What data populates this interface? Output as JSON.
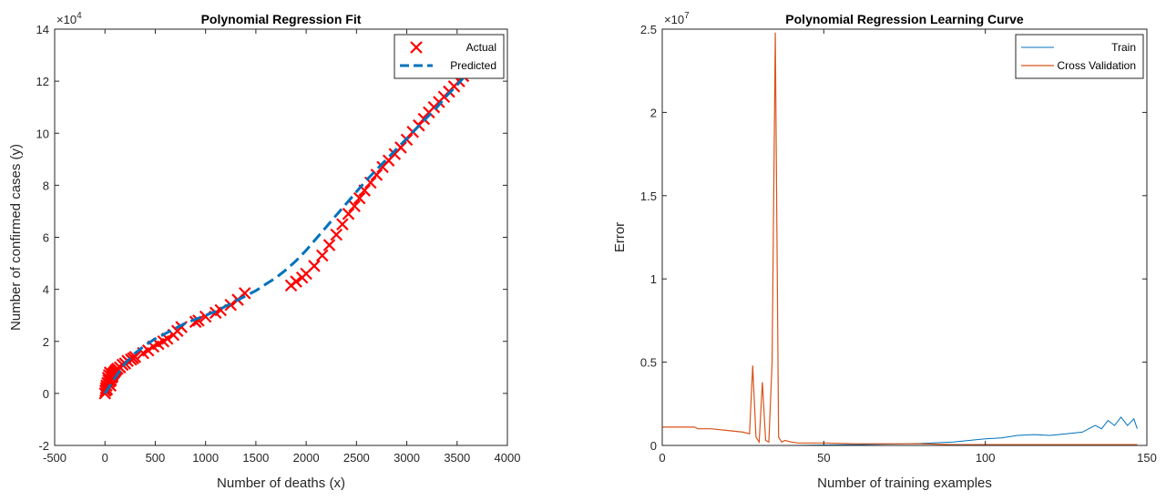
{
  "chart_data": [
    {
      "type": "scatter",
      "title": "Polynomial Regression Fit",
      "xlabel": "Number of deaths (x)",
      "ylabel": "Number of confirmed cases (y)",
      "xlim": [
        -500,
        4000
      ],
      "ylim": [
        -2,
        14
      ],
      "y_multiplier": "×10",
      "y_multiplier_exp": "4",
      "xticks": [
        "-500",
        "0",
        "500",
        "1000",
        "1500",
        "2000",
        "2500",
        "3000",
        "3500",
        "4000"
      ],
      "yticks": [
        "-2",
        "0",
        "2",
        "4",
        "6",
        "8",
        "10",
        "12",
        "14"
      ],
      "legend_position": "top-right",
      "series": [
        {
          "name": "Actual",
          "style": "red x markers",
          "color": "#ff0000",
          "x": [
            0,
            5,
            10,
            15,
            20,
            25,
            30,
            35,
            40,
            45,
            50,
            55,
            60,
            65,
            70,
            75,
            80,
            90,
            100,
            110,
            125,
            150,
            175,
            200,
            225,
            260,
            280,
            300,
            380,
            430,
            480,
            530,
            580,
            620,
            680,
            720,
            760,
            900,
            930,
            1000,
            1100,
            1150,
            1250,
            1320,
            1390,
            1850,
            1900,
            1960,
            2000,
            2080,
            2160,
            2230,
            2300,
            2360,
            2420,
            2480,
            2530,
            2580,
            2640,
            2700,
            2760,
            2820,
            2880,
            2940,
            3000,
            3060,
            3120,
            3170,
            3220,
            3270,
            3320,
            3370,
            3420,
            3470,
            3520,
            3560,
            3600,
            3640,
            3680,
            3720,
            3760,
            3800,
            3840,
            3880
          ],
          "y": [
            0.0,
            0.1,
            0.2,
            0.3,
            0.15,
            0.4,
            0.6,
            0.5,
            0.7,
            0.45,
            0.8,
            0.3,
            0.5,
            0.6,
            0.7,
            0.65,
            0.75,
            0.8,
            0.85,
            0.9,
            0.95,
            1.0,
            1.1,
            1.15,
            1.25,
            1.3,
            1.35,
            1.4,
            1.55,
            1.65,
            1.8,
            1.9,
            2.0,
            2.1,
            2.25,
            2.4,
            2.55,
            2.75,
            2.8,
            2.95,
            3.1,
            3.2,
            3.4,
            3.6,
            3.85,
            4.15,
            4.3,
            4.45,
            4.6,
            4.9,
            5.3,
            5.7,
            6.1,
            6.5,
            6.9,
            7.2,
            7.5,
            7.8,
            8.1,
            8.4,
            8.7,
            8.95,
            9.2,
            9.45,
            9.75,
            10.05,
            10.3,
            10.55,
            10.8,
            11.0,
            11.2,
            11.4,
            11.6,
            11.8,
            12.0,
            12.2,
            12.4,
            12.55,
            12.7,
            12.85,
            12.95,
            13.0,
            13.05,
            13.1
          ]
        },
        {
          "name": "Predicted",
          "style": "blue dashed line",
          "color": "#0072bd",
          "x": [
            0,
            100,
            200,
            300,
            400,
            500,
            600,
            700,
            800,
            900,
            1000,
            1100,
            1200,
            1300,
            1400,
            1500,
            1600,
            1700,
            1800,
            1900,
            2000,
            2100,
            2200,
            2300,
            2400,
            2500,
            2600,
            2700,
            2800,
            2900,
            3000,
            3100,
            3200,
            3300,
            3400,
            3500,
            3600,
            3700,
            3800,
            3900
          ],
          "y": [
            0.0,
            0.6,
            1.15,
            1.55,
            1.85,
            2.1,
            2.3,
            2.5,
            2.7,
            2.85,
            3.0,
            3.15,
            3.35,
            3.55,
            3.75,
            3.95,
            4.2,
            4.45,
            4.75,
            5.1,
            5.5,
            5.95,
            6.4,
            6.85,
            7.3,
            7.75,
            8.2,
            8.6,
            9.0,
            9.4,
            9.8,
            10.2,
            10.6,
            11.0,
            11.45,
            11.85,
            12.3,
            12.7,
            13.1,
            13.5
          ]
        }
      ]
    },
    {
      "type": "line",
      "title": "Polynomial Regression Learning Curve",
      "xlabel": "Number of training examples",
      "ylabel": "Error",
      "xlim": [
        0,
        150
      ],
      "ylim": [
        0,
        2.5
      ],
      "y_multiplier": "×10",
      "y_multiplier_exp": "7",
      "xticks": [
        "0",
        "50",
        "100",
        "150"
      ],
      "yticks": [
        "0",
        "0.5",
        "1",
        "1.5",
        "2",
        "2.5"
      ],
      "legend_position": "top-right",
      "series": [
        {
          "name": "Train",
          "color": "#0072bd",
          "x": [
            0,
            10,
            20,
            30,
            40,
            50,
            60,
            70,
            80,
            90,
            95,
            100,
            105,
            110,
            115,
            120,
            125,
            130,
            132,
            134,
            136,
            138,
            140,
            142,
            144,
            146,
            147
          ],
          "y": [
            0.0,
            0.0,
            0.0,
            0.0,
            0.0,
            0.003,
            0.005,
            0.008,
            0.012,
            0.02,
            0.03,
            0.04,
            0.045,
            0.06,
            0.065,
            0.06,
            0.07,
            0.08,
            0.1,
            0.12,
            0.1,
            0.15,
            0.12,
            0.17,
            0.12,
            0.16,
            0.1
          ]
        },
        {
          "name": "Cross Validation",
          "color": "#d95319",
          "x": [
            0,
            5,
            10,
            11,
            15,
            20,
            25,
            27,
            28,
            29,
            30,
            31,
            32,
            33,
            34,
            35,
            36,
            37,
            38,
            40,
            42,
            45,
            50,
            60,
            70,
            80,
            90,
            100,
            110,
            120,
            130,
            140,
            147
          ],
          "y": [
            0.11,
            0.11,
            0.11,
            0.1,
            0.1,
            0.09,
            0.08,
            0.07,
            0.48,
            0.05,
            0.02,
            0.38,
            0.03,
            0.02,
            0.5,
            2.48,
            0.05,
            0.02,
            0.03,
            0.02,
            0.015,
            0.015,
            0.015,
            0.01,
            0.01,
            0.01,
            0.005,
            0.005,
            0.005,
            0.005,
            0.005,
            0.005,
            0.005
          ]
        }
      ]
    }
  ]
}
